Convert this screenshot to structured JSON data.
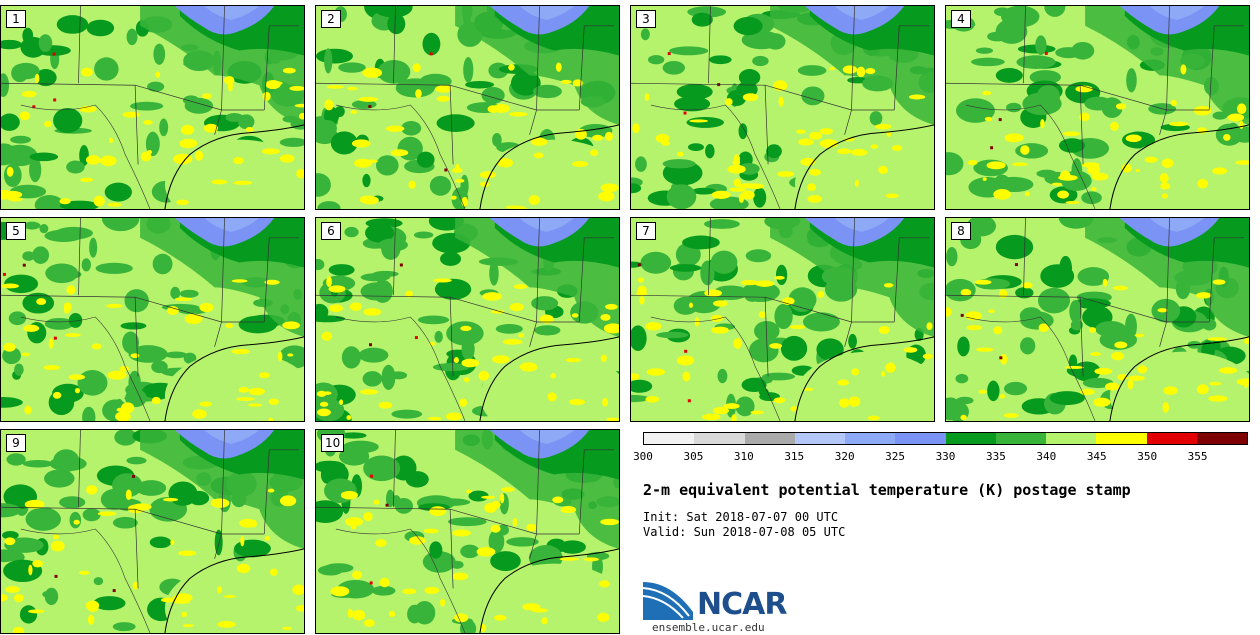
{
  "stamps": [
    "1",
    "2",
    "3",
    "4",
    "5",
    "6",
    "7",
    "8",
    "9",
    "10"
  ],
  "colorbar": {
    "colors": [
      "#f2f2f2",
      "#d9d9d9",
      "#aaaaaa",
      "#b3c8f8",
      "#8eaaf6",
      "#7a93f4",
      "#069a1e",
      "#38b43a",
      "#b6f36c",
      "#ffff00",
      "#e20000",
      "#7f0000"
    ],
    "ticks": [
      "300",
      "305",
      "310",
      "315",
      "320",
      "325",
      "330",
      "335",
      "340",
      "345",
      "350",
      "355"
    ]
  },
  "chart_data": {
    "type": "map",
    "title": "2-m equivalent potential temperature (K) postage stamp",
    "init": "Init: Sat 2018-07-07 00 UTC",
    "valid": "Valid: Sun 2018-07-08 05 UTC",
    "members": [
      "1",
      "2",
      "3",
      "4",
      "5",
      "6",
      "7",
      "8",
      "9",
      "10"
    ],
    "colorbar_levels": [
      300,
      305,
      310,
      315,
      320,
      325,
      330,
      335,
      340,
      345,
      350,
      355
    ],
    "units": "K"
  },
  "branding": {
    "logo": "NCAR",
    "website": "ensemble.ucar.edu"
  }
}
